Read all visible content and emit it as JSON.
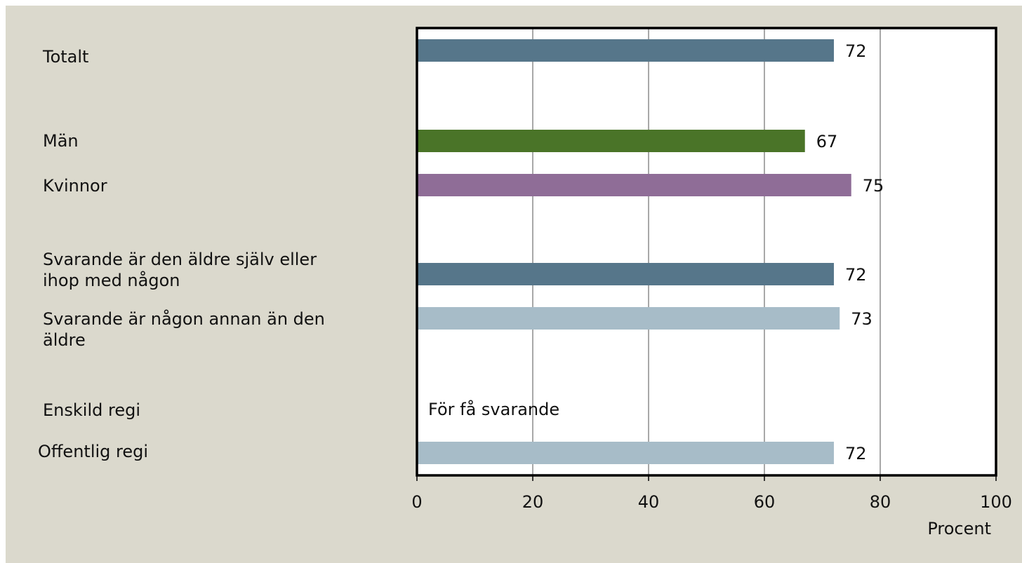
{
  "chart_data": {
    "type": "bar",
    "orientation": "horizontal",
    "categories": [
      "Totalt",
      "Män",
      "Kvinnor",
      "Svarande är den äldre själv eller\nihop med någon",
      "Svarande är någon annan än den\näldre",
      "Enskild regi",
      "Offentlig regi"
    ],
    "values": [
      72,
      67,
      75,
      72,
      73,
      null,
      72
    ],
    "data_labels": [
      "72",
      "67",
      "75",
      "72",
      "73",
      "För få svarande",
      "72"
    ],
    "bar_colors": [
      "#56768a",
      "#4a7428",
      "#8f6d97",
      "#56768a",
      "#a7bcc8",
      null,
      "#a7bcc8"
    ],
    "xlabel": "Procent",
    "ylabel": "",
    "xlim": [
      0,
      100
    ],
    "x_ticks": [
      "0",
      "20",
      "40",
      "60",
      "80",
      "100"
    ],
    "grid": "vertical",
    "legend": "none",
    "colors": {
      "background": "#dbd9cd",
      "plot_area": "#ffffff",
      "axis": "#000000",
      "grid": "#8c8c8c"
    }
  }
}
